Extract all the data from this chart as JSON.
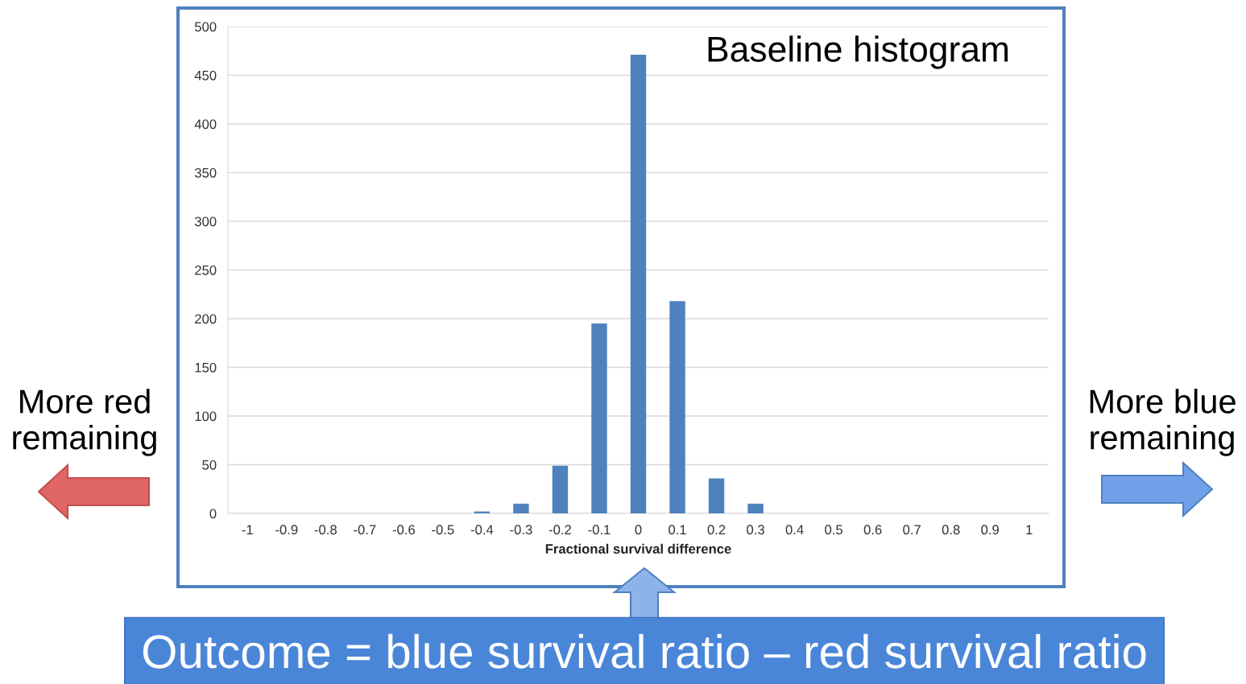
{
  "chart_data": {
    "type": "bar",
    "xlabel": "Fractional survival difference",
    "categories": [
      "-1",
      "-0.9",
      "-0.8",
      "-0.7",
      "-0.6",
      "-0.5",
      "-0.4",
      "-0.3",
      "-0.2",
      "-0.1",
      "0",
      "0.1",
      "0.2",
      "0.3",
      "0.4",
      "0.5",
      "0.6",
      "0.7",
      "0.8",
      "0.9",
      "1"
    ],
    "values": [
      0,
      0,
      0,
      0,
      0,
      0,
      2,
      10,
      49,
      195,
      471,
      218,
      36,
      10,
      0,
      0,
      0,
      0,
      0,
      0,
      0
    ],
    "color": "#4f81bd",
    "ylim": [
      0,
      500
    ],
    "yticks": [
      0,
      50,
      100,
      150,
      200,
      250,
      300,
      350,
      400,
      450,
      500
    ],
    "grid": "y",
    "annotations": [
      "Baseline histogram",
      "More red remaining",
      "More blue remaining",
      "Outcome = blue survival ratio – red survival ratio"
    ]
  }
}
